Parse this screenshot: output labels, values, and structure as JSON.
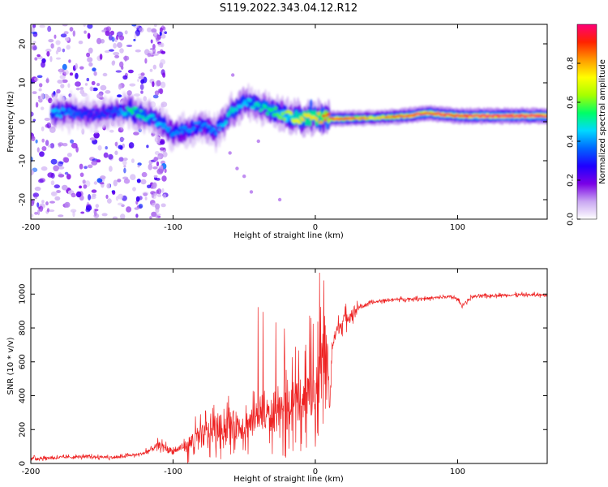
{
  "page_title": "S119.2022.343.04.12.R12",
  "chart_data": [
    {
      "type": "heatmap",
      "title": "S119.2022.343.04.12.R12",
      "xlabel": "Height of straight line (km)",
      "ylabel": "Frequency (Hz)",
      "xlim": [
        -200,
        163
      ],
      "ylim": [
        -25,
        25
      ],
      "xticks": [
        -200,
        -100,
        0,
        100
      ],
      "yticks": [
        -20,
        -10,
        0,
        10,
        20
      ],
      "colorbar": {
        "label": "Normalized spectral amplitude",
        "range": [
          0,
          1
        ],
        "ticks": [
          0.0,
          0.2,
          0.4,
          0.6,
          0.8
        ],
        "colors": [
          "#ffffff",
          "#c9a6f2",
          "#7a00e6",
          "#1f00ff",
          "#0066ff",
          "#00d9ff",
          "#00ff66",
          "#a6ff00",
          "#ffff00",
          "#ff9900",
          "#ff2200",
          "#ff0077"
        ]
      },
      "ridge": [
        {
          "x": -180,
          "freq": 2.5,
          "amp": 0.45
        },
        {
          "x": -160,
          "freq": 2.0,
          "amp": 0.3
        },
        {
          "x": -140,
          "freq": 2.5,
          "amp": 0.35
        },
        {
          "x": -130,
          "freq": 3.0,
          "amp": 0.55
        },
        {
          "x": -120,
          "freq": 1.5,
          "amp": 0.5
        },
        {
          "x": -110,
          "freq": 0.0,
          "amp": 0.45
        },
        {
          "x": -100,
          "freq": -3.0,
          "amp": 0.4
        },
        {
          "x": -90,
          "freq": -2.0,
          "amp": 0.4
        },
        {
          "x": -80,
          "freq": -1.0,
          "amp": 0.4
        },
        {
          "x": -70,
          "freq": -2.5,
          "amp": 0.4
        },
        {
          "x": -60,
          "freq": 2.0,
          "amp": 0.5
        },
        {
          "x": -50,
          "freq": 5.0,
          "amp": 0.45
        },
        {
          "x": -40,
          "freq": 4.0,
          "amp": 0.5
        },
        {
          "x": -30,
          "freq": 2.5,
          "amp": 0.55
        },
        {
          "x": -20,
          "freq": 1.5,
          "amp": 0.65
        },
        {
          "x": -10,
          "freq": 0.8,
          "amp": 0.75
        },
        {
          "x": 0,
          "freq": 1.0,
          "amp": 0.75
        },
        {
          "x": 10,
          "freq": 0.8,
          "amp": 0.85
        },
        {
          "x": 20,
          "freq": 0.8,
          "amp": 0.85
        },
        {
          "x": 40,
          "freq": 1.0,
          "amp": 0.7
        },
        {
          "x": 60,
          "freq": 1.4,
          "amp": 0.85
        },
        {
          "x": 80,
          "freq": 2.2,
          "amp": 0.9
        },
        {
          "x": 100,
          "freq": 1.5,
          "amp": 0.9
        },
        {
          "x": 120,
          "freq": 1.5,
          "amp": 0.95
        },
        {
          "x": 140,
          "freq": 1.5,
          "amp": 0.95
        },
        {
          "x": 163,
          "freq": 1.5,
          "amp": 0.95
        }
      ]
    },
    {
      "type": "line",
      "xlabel": "Height of straight line (km)",
      "ylabel": "SNR (10 * v/v)",
      "xlim": [
        -200,
        163
      ],
      "ylim": [
        0,
        1150
      ],
      "xticks": [
        -200,
        -100,
        0,
        100
      ],
      "yticks": [
        0,
        200,
        400,
        600,
        800,
        1000
      ],
      "series": [
        {
          "name": "SNR",
          "color": "#ee2222",
          "x": [
            -200,
            -180,
            -160,
            -140,
            -120,
            -110,
            -100,
            -90,
            -80,
            -70,
            -60,
            -50,
            -40,
            -30,
            -20,
            -15,
            -10,
            -5,
            0,
            5,
            8,
            10,
            12,
            15,
            20,
            25,
            30,
            40,
            50,
            60,
            80,
            95,
            100,
            103,
            110,
            120,
            140,
            163
          ],
          "y": [
            30,
            35,
            40,
            35,
            60,
            110,
            70,
            110,
            160,
            200,
            230,
            220,
            280,
            280,
            300,
            380,
            380,
            420,
            420,
            550,
            700,
            300,
            700,
            780,
            850,
            880,
            920,
            950,
            965,
            970,
            975,
            985,
            970,
            930,
            985,
            990,
            995,
            995
          ]
        }
      ]
    }
  ]
}
